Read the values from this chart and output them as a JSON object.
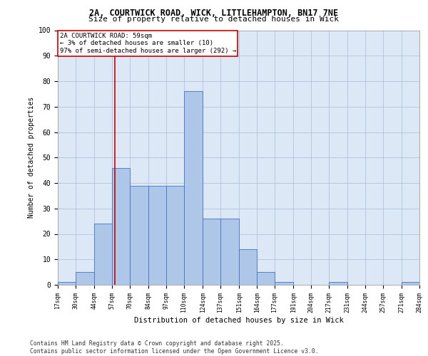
{
  "title_line1": "2A, COURTWICK ROAD, WICK, LITTLEHAMPTON, BN17 7NE",
  "title_line2": "Size of property relative to detached houses in Wick",
  "xlabel": "Distribution of detached houses by size in Wick",
  "ylabel": "Number of detached properties",
  "footnote": "Contains HM Land Registry data © Crown copyright and database right 2025.\nContains public sector information licensed under the Open Government Licence v3.0.",
  "annotation_line1": "2A COURTWICK ROAD: 59sqm",
  "annotation_line2": "← 3% of detached houses are smaller (10)",
  "annotation_line3": "97% of semi-detached houses are larger (292) →",
  "property_size": 59,
  "bin_edges": [
    17,
    30,
    44,
    57,
    70,
    84,
    97,
    110,
    124,
    137,
    151,
    164,
    177,
    191,
    204,
    217,
    231,
    244,
    257,
    271,
    284
  ],
  "bar_heights": [
    1,
    5,
    24,
    46,
    39,
    39,
    39,
    76,
    26,
    26,
    14,
    5,
    1,
    0,
    0,
    1,
    0,
    0,
    0,
    1
  ],
  "bar_color": "#aec6e8",
  "bar_edge_color": "#4472c4",
  "vline_color": "#cc0000",
  "vline_x": 59,
  "annotation_box_color": "#cc0000",
  "ylim": [
    0,
    100
  ],
  "yticks": [
    0,
    10,
    20,
    30,
    40,
    50,
    60,
    70,
    80,
    90,
    100
  ],
  "grid_color": "#b0c4de",
  "bg_color": "#dce8f5"
}
